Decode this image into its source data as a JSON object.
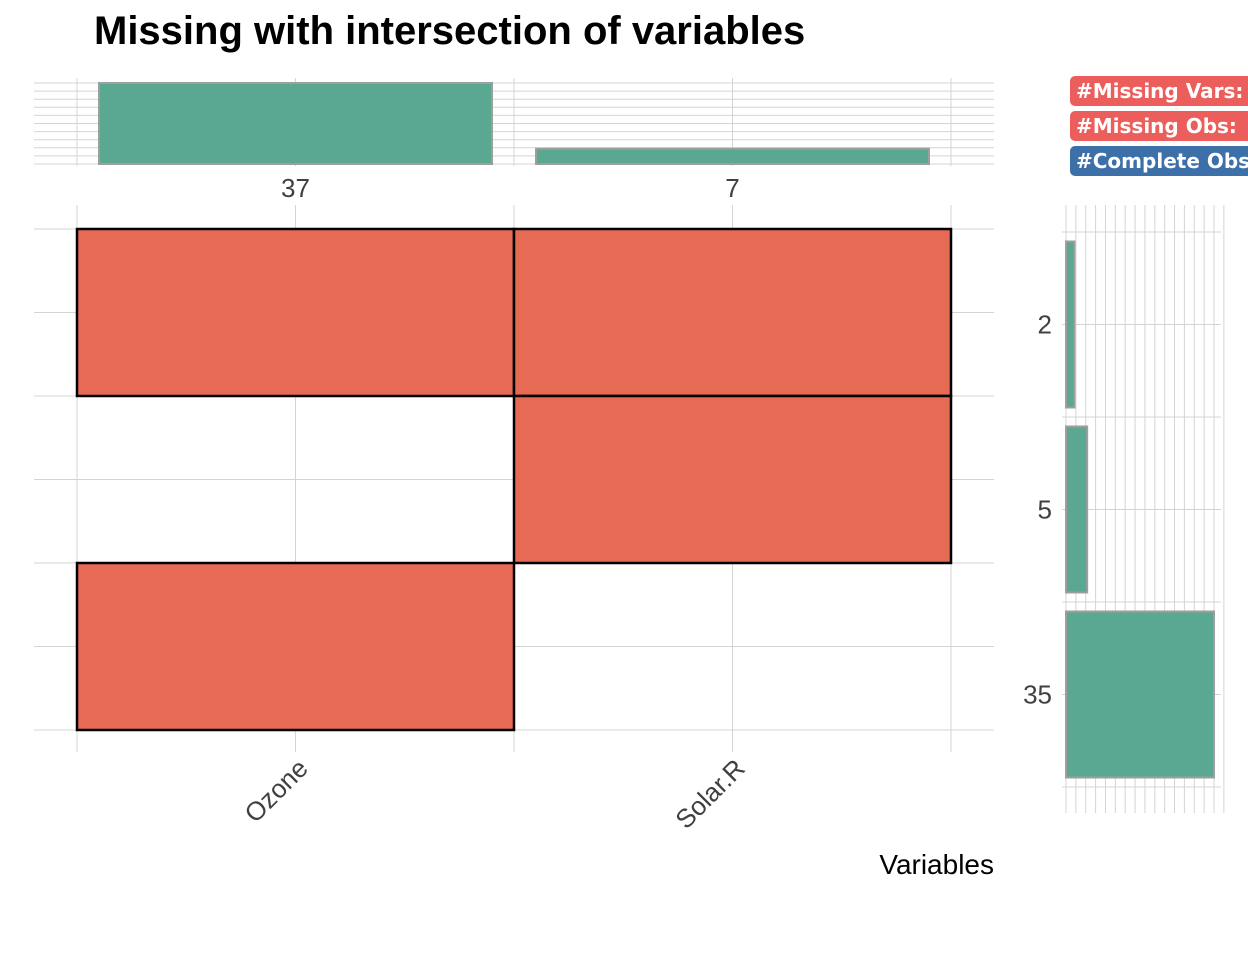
{
  "chart_data": {
    "type": "heatmap",
    "title": "Missing with intersection of variables",
    "xlabel": "Variables",
    "variables": [
      "Ozone",
      "Solar.R"
    ],
    "variable_missing_counts": [
      37,
      7
    ],
    "intersections": [
      {
        "pattern": [
          1,
          1
        ],
        "count": 2
      },
      {
        "pattern": [
          0,
          1
        ],
        "count": 5
      },
      {
        "pattern": [
          1,
          0
        ],
        "count": 35
      }
    ],
    "legend": [
      "#Missing Vars:",
      "#Missing Obs:",
      "#Complete Obs"
    ],
    "colors": {
      "missing_cell": "#e66a54",
      "bar_fill": "#5aa891",
      "bar_stroke": "#9e9e9e",
      "grid": "#d4d4d4",
      "legend_missing": "#eb5e5c",
      "legend_complete": "#3d6fa8"
    }
  }
}
